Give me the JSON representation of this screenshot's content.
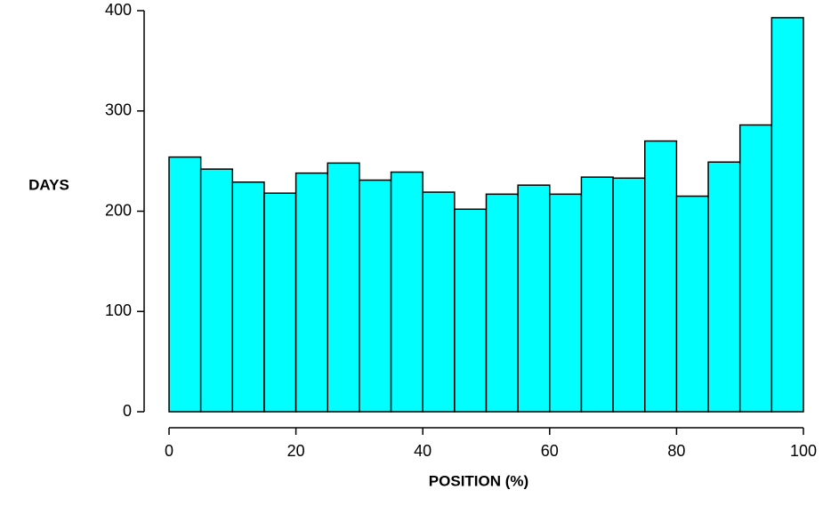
{
  "chart_data": {
    "type": "histogram",
    "xlabel": "POSITION (%)",
    "ylabel": "DAYS",
    "bins": [
      0,
      5,
      10,
      15,
      20,
      25,
      30,
      35,
      40,
      45,
      50,
      55,
      60,
      65,
      70,
      75,
      80,
      85,
      90,
      95,
      100
    ],
    "counts": [
      254,
      242,
      229,
      218,
      238,
      248,
      231,
      239,
      219,
      202,
      217,
      226,
      217,
      234,
      233,
      270,
      215,
      249,
      286,
      393
    ],
    "color": "#00ffff",
    "xlim": [
      0,
      100
    ],
    "xticks": [
      0,
      20,
      40,
      60,
      80,
      100
    ],
    "ylim": [
      0,
      400
    ],
    "yticks": [
      0,
      100,
      200,
      300,
      400
    ]
  }
}
